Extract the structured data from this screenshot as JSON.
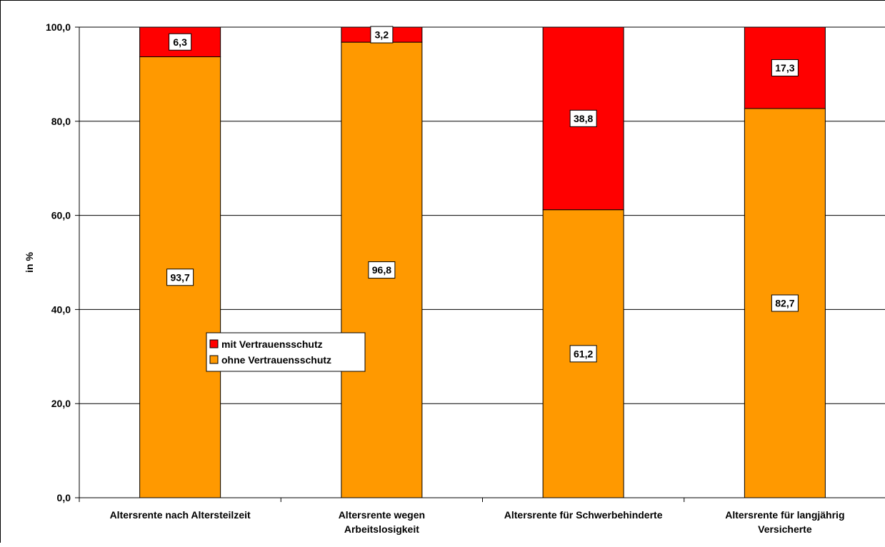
{
  "chart_data": {
    "type": "bar",
    "stacked": true,
    "ylabel": "in %",
    "xlabel": "",
    "ylim": [
      0,
      100
    ],
    "yticks": [
      "0,0",
      "20,0",
      "40,0",
      "60,0",
      "80,0",
      "100,0"
    ],
    "grid": true,
    "legend_position": "center-left",
    "categories": [
      [
        "Altersrente nach Altersteilzeit"
      ],
      [
        "Altersrente wegen",
        "Arbeitslosigkeit"
      ],
      [
        "Altersrente für Schwerbehinderte"
      ],
      [
        "Altersrente für langjährig",
        "Versicherte"
      ]
    ],
    "series": [
      {
        "name": "ohne Vertrauensschutz",
        "color": "#FF9900",
        "values": [
          93.7,
          96.8,
          61.2,
          82.7
        ],
        "labels": [
          "93,7",
          "96,8",
          "61,2",
          "82,7"
        ]
      },
      {
        "name": "mit Vertrauensschutz",
        "color": "#FF0000",
        "values": [
          6.3,
          3.2,
          38.8,
          17.3
        ],
        "labels": [
          "6,3",
          "3,2",
          "38,8",
          "17,3"
        ]
      }
    ],
    "legend": [
      {
        "name": "mit Vertrauensschutz",
        "color": "#FF0000"
      },
      {
        "name": "ohne Vertrauensschutz",
        "color": "#FF9900"
      }
    ]
  }
}
